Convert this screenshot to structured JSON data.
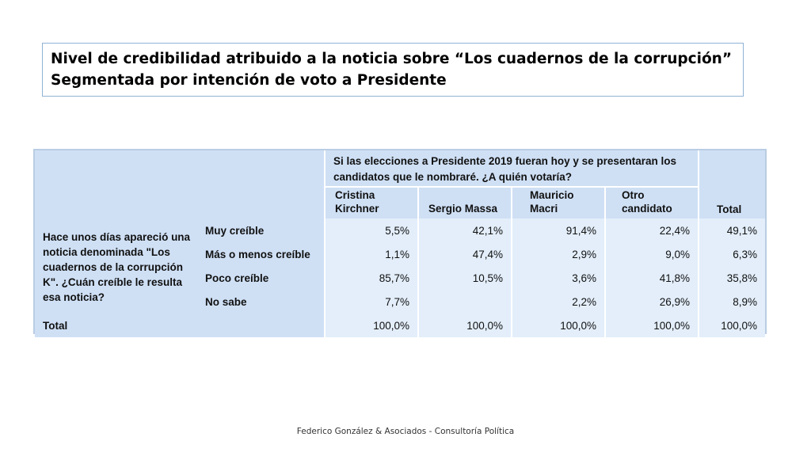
{
  "title": {
    "line1": "Nivel de credibilidad atribuido a la noticia sobre “Los cuadernos de la corrupción”",
    "line2": "Segmentada por intención de voto a Presidente"
  },
  "table": {
    "question_header": "Si las elecciones a Presidente 2019 fueran hoy y se presentaran los candidatos que le nombraré. ¿A quién votaría?",
    "columns": [
      "Cristina Kirchner",
      "Sergio Massa",
      "Mauricio Macri",
      "Otro candidato",
      "Total"
    ],
    "row_question": "Hace unos días apareció una noticia denominada \"Los cuadernos de la corrupción K\". ¿Cuán creíble le resulta esa noticia?",
    "rows": [
      {
        "label": "Muy creíble",
        "values": [
          "5,5%",
          "42,1%",
          "91,4%",
          "22,4%",
          "49,1%"
        ]
      },
      {
        "label": "Más o menos creíble",
        "values": [
          "1,1%",
          "47,4%",
          "2,9%",
          "9,0%",
          "6,3%"
        ]
      },
      {
        "label": "Poco creíble",
        "values": [
          "85,7%",
          "10,5%",
          "3,6%",
          "41,8%",
          "35,8%"
        ]
      },
      {
        "label": "No sabe",
        "values": [
          "7,7%",
          "",
          "2,2%",
          "26,9%",
          "8,9%"
        ]
      }
    ],
    "total_row": {
      "label": "Total",
      "values": [
        "100,0%",
        "100,0%",
        "100,0%",
        "100,0%",
        "100,0%"
      ]
    }
  },
  "footer": "Federico González & Asociados - Consultoría Política"
}
